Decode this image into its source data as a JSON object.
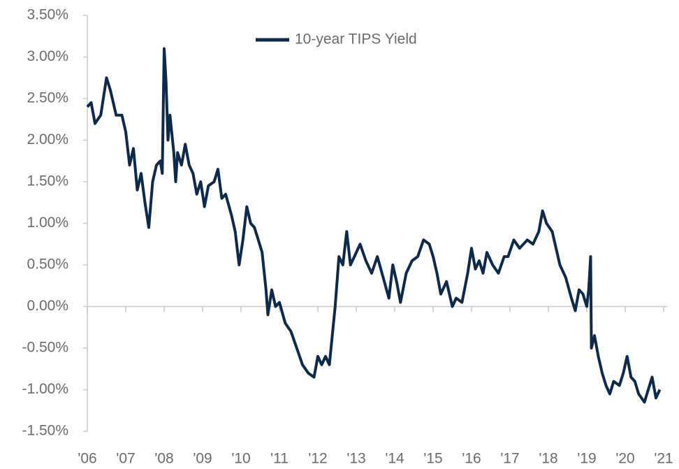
{
  "chart_data": {
    "type": "line",
    "series": [
      {
        "name": "10-year TIPS Yield",
        "color": "#0d2a4a",
        "x": [
          2006.0,
          2006.1,
          2006.2,
          2006.35,
          2006.5,
          2006.6,
          2006.75,
          2006.9,
          2007.0,
          2007.1,
          2007.2,
          2007.3,
          2007.4,
          2007.5,
          2007.6,
          2007.7,
          2007.8,
          2007.9,
          2007.95,
          2008.0,
          2008.05,
          2008.1,
          2008.15,
          2008.25,
          2008.3,
          2008.35,
          2008.45,
          2008.55,
          2008.65,
          2008.75,
          2008.85,
          2008.95,
          2009.05,
          2009.15,
          2009.3,
          2009.4,
          2009.5,
          2009.6,
          2009.75,
          2009.85,
          2009.95,
          2010.05,
          2010.15,
          2010.25,
          2010.35,
          2010.45,
          2010.55,
          2010.65,
          2010.7,
          2010.8,
          2010.9,
          2011.0,
          2011.15,
          2011.3,
          2011.45,
          2011.6,
          2011.75,
          2011.9,
          2012.0,
          2012.1,
          2012.2,
          2012.3,
          2012.45,
          2012.55,
          2012.65,
          2012.75,
          2012.85,
          2012.95,
          2013.1,
          2013.25,
          2013.4,
          2013.55,
          2013.7,
          2013.85,
          2013.95,
          2014.05,
          2014.15,
          2014.3,
          2014.45,
          2014.6,
          2014.75,
          2014.9,
          2015.0,
          2015.1,
          2015.2,
          2015.35,
          2015.5,
          2015.6,
          2015.75,
          2015.9,
          2016.0,
          2016.1,
          2016.2,
          2016.3,
          2016.4,
          2016.55,
          2016.7,
          2016.85,
          2016.95,
          2017.1,
          2017.25,
          2017.45,
          2017.6,
          2017.75,
          2017.85,
          2017.95,
          2018.1,
          2018.2,
          2018.3,
          2018.45,
          2018.6,
          2018.7,
          2018.8,
          2018.9,
          2019.0,
          2019.05,
          2019.1,
          2019.12,
          2019.2,
          2019.3,
          2019.4,
          2019.5,
          2019.6,
          2019.7,
          2019.85,
          2019.95,
          2020.05,
          2020.15,
          2020.25,
          2020.35,
          2020.5,
          2020.6,
          2020.7,
          2020.8,
          2020.9
        ],
        "values": [
          2.4,
          2.45,
          2.2,
          2.3,
          2.75,
          2.6,
          2.3,
          2.3,
          2.1,
          1.7,
          1.9,
          1.4,
          1.6,
          1.25,
          0.95,
          1.5,
          1.7,
          1.75,
          1.6,
          3.1,
          2.7,
          2.0,
          2.3,
          1.85,
          1.5,
          1.85,
          1.7,
          1.95,
          1.7,
          1.6,
          1.35,
          1.5,
          1.2,
          1.45,
          1.5,
          1.65,
          1.3,
          1.35,
          1.1,
          0.9,
          0.5,
          0.8,
          1.2,
          1.0,
          0.95,
          0.8,
          0.65,
          0.2,
          -0.1,
          0.2,
          0.0,
          0.05,
          -0.2,
          -0.3,
          -0.5,
          -0.7,
          -0.8,
          -0.85,
          -0.6,
          -0.7,
          -0.6,
          -0.7,
          0.0,
          0.6,
          0.5,
          0.9,
          0.5,
          0.6,
          0.75,
          0.55,
          0.4,
          0.6,
          0.35,
          0.1,
          0.5,
          0.3,
          0.05,
          0.4,
          0.55,
          0.6,
          0.8,
          0.75,
          0.6,
          0.4,
          0.15,
          0.3,
          0.0,
          0.1,
          0.05,
          0.4,
          0.7,
          0.45,
          0.55,
          0.4,
          0.65,
          0.5,
          0.4,
          0.6,
          0.6,
          0.8,
          0.7,
          0.8,
          0.75,
          0.9,
          1.15,
          1.0,
          0.9,
          0.7,
          0.5,
          0.35,
          0.1,
          -0.05,
          0.2,
          0.15,
          0.0,
          0.2,
          0.6,
          -0.5,
          -0.35,
          -0.6,
          -0.8,
          -0.95,
          -1.05,
          -0.9,
          -0.95,
          -0.8,
          -0.6,
          -0.85,
          -0.9,
          -1.05,
          -1.15,
          -1.0,
          -0.85,
          -1.1,
          -1.0
        ]
      }
    ],
    "xlim": [
      2006,
      2021
    ],
    "xticks": [
      {
        "value": 2006,
        "label": "'06"
      },
      {
        "value": 2007,
        "label": "'07"
      },
      {
        "value": 2008,
        "label": "'08"
      },
      {
        "value": 2009,
        "label": "'09"
      },
      {
        "value": 2010,
        "label": "'10"
      },
      {
        "value": 2011,
        "label": "'11"
      },
      {
        "value": 2012,
        "label": "'12"
      },
      {
        "value": 2013,
        "label": "'13"
      },
      {
        "value": 2014,
        "label": "'14"
      },
      {
        "value": 2015,
        "label": "'15"
      },
      {
        "value": 2016,
        "label": "'16"
      },
      {
        "value": 2017,
        "label": "'17"
      },
      {
        "value": 2018,
        "label": "'18"
      },
      {
        "value": 2019,
        "label": "'19"
      },
      {
        "value": 2020,
        "label": "'20"
      },
      {
        "value": 2021,
        "label": "'21"
      }
    ],
    "ylim": [
      -1.5,
      3.5
    ],
    "yticks": [
      {
        "value": -1.5,
        "label": "-1.50%"
      },
      {
        "value": -1.0,
        "label": "-1.00%"
      },
      {
        "value": -0.5,
        "label": "-0.50%"
      },
      {
        "value": 0,
        "label": "0.00%"
      },
      {
        "value": 0.5,
        "label": "0.50%"
      },
      {
        "value": 1.0,
        "label": "1.00%"
      },
      {
        "value": 1.5,
        "label": "1.50%"
      },
      {
        "value": 2.0,
        "label": "2.00%"
      },
      {
        "value": 2.5,
        "label": "2.50%"
      },
      {
        "value": 3.0,
        "label": "3.00%"
      },
      {
        "value": 3.5,
        "label": "3.50%"
      }
    ],
    "legend": "top"
  }
}
